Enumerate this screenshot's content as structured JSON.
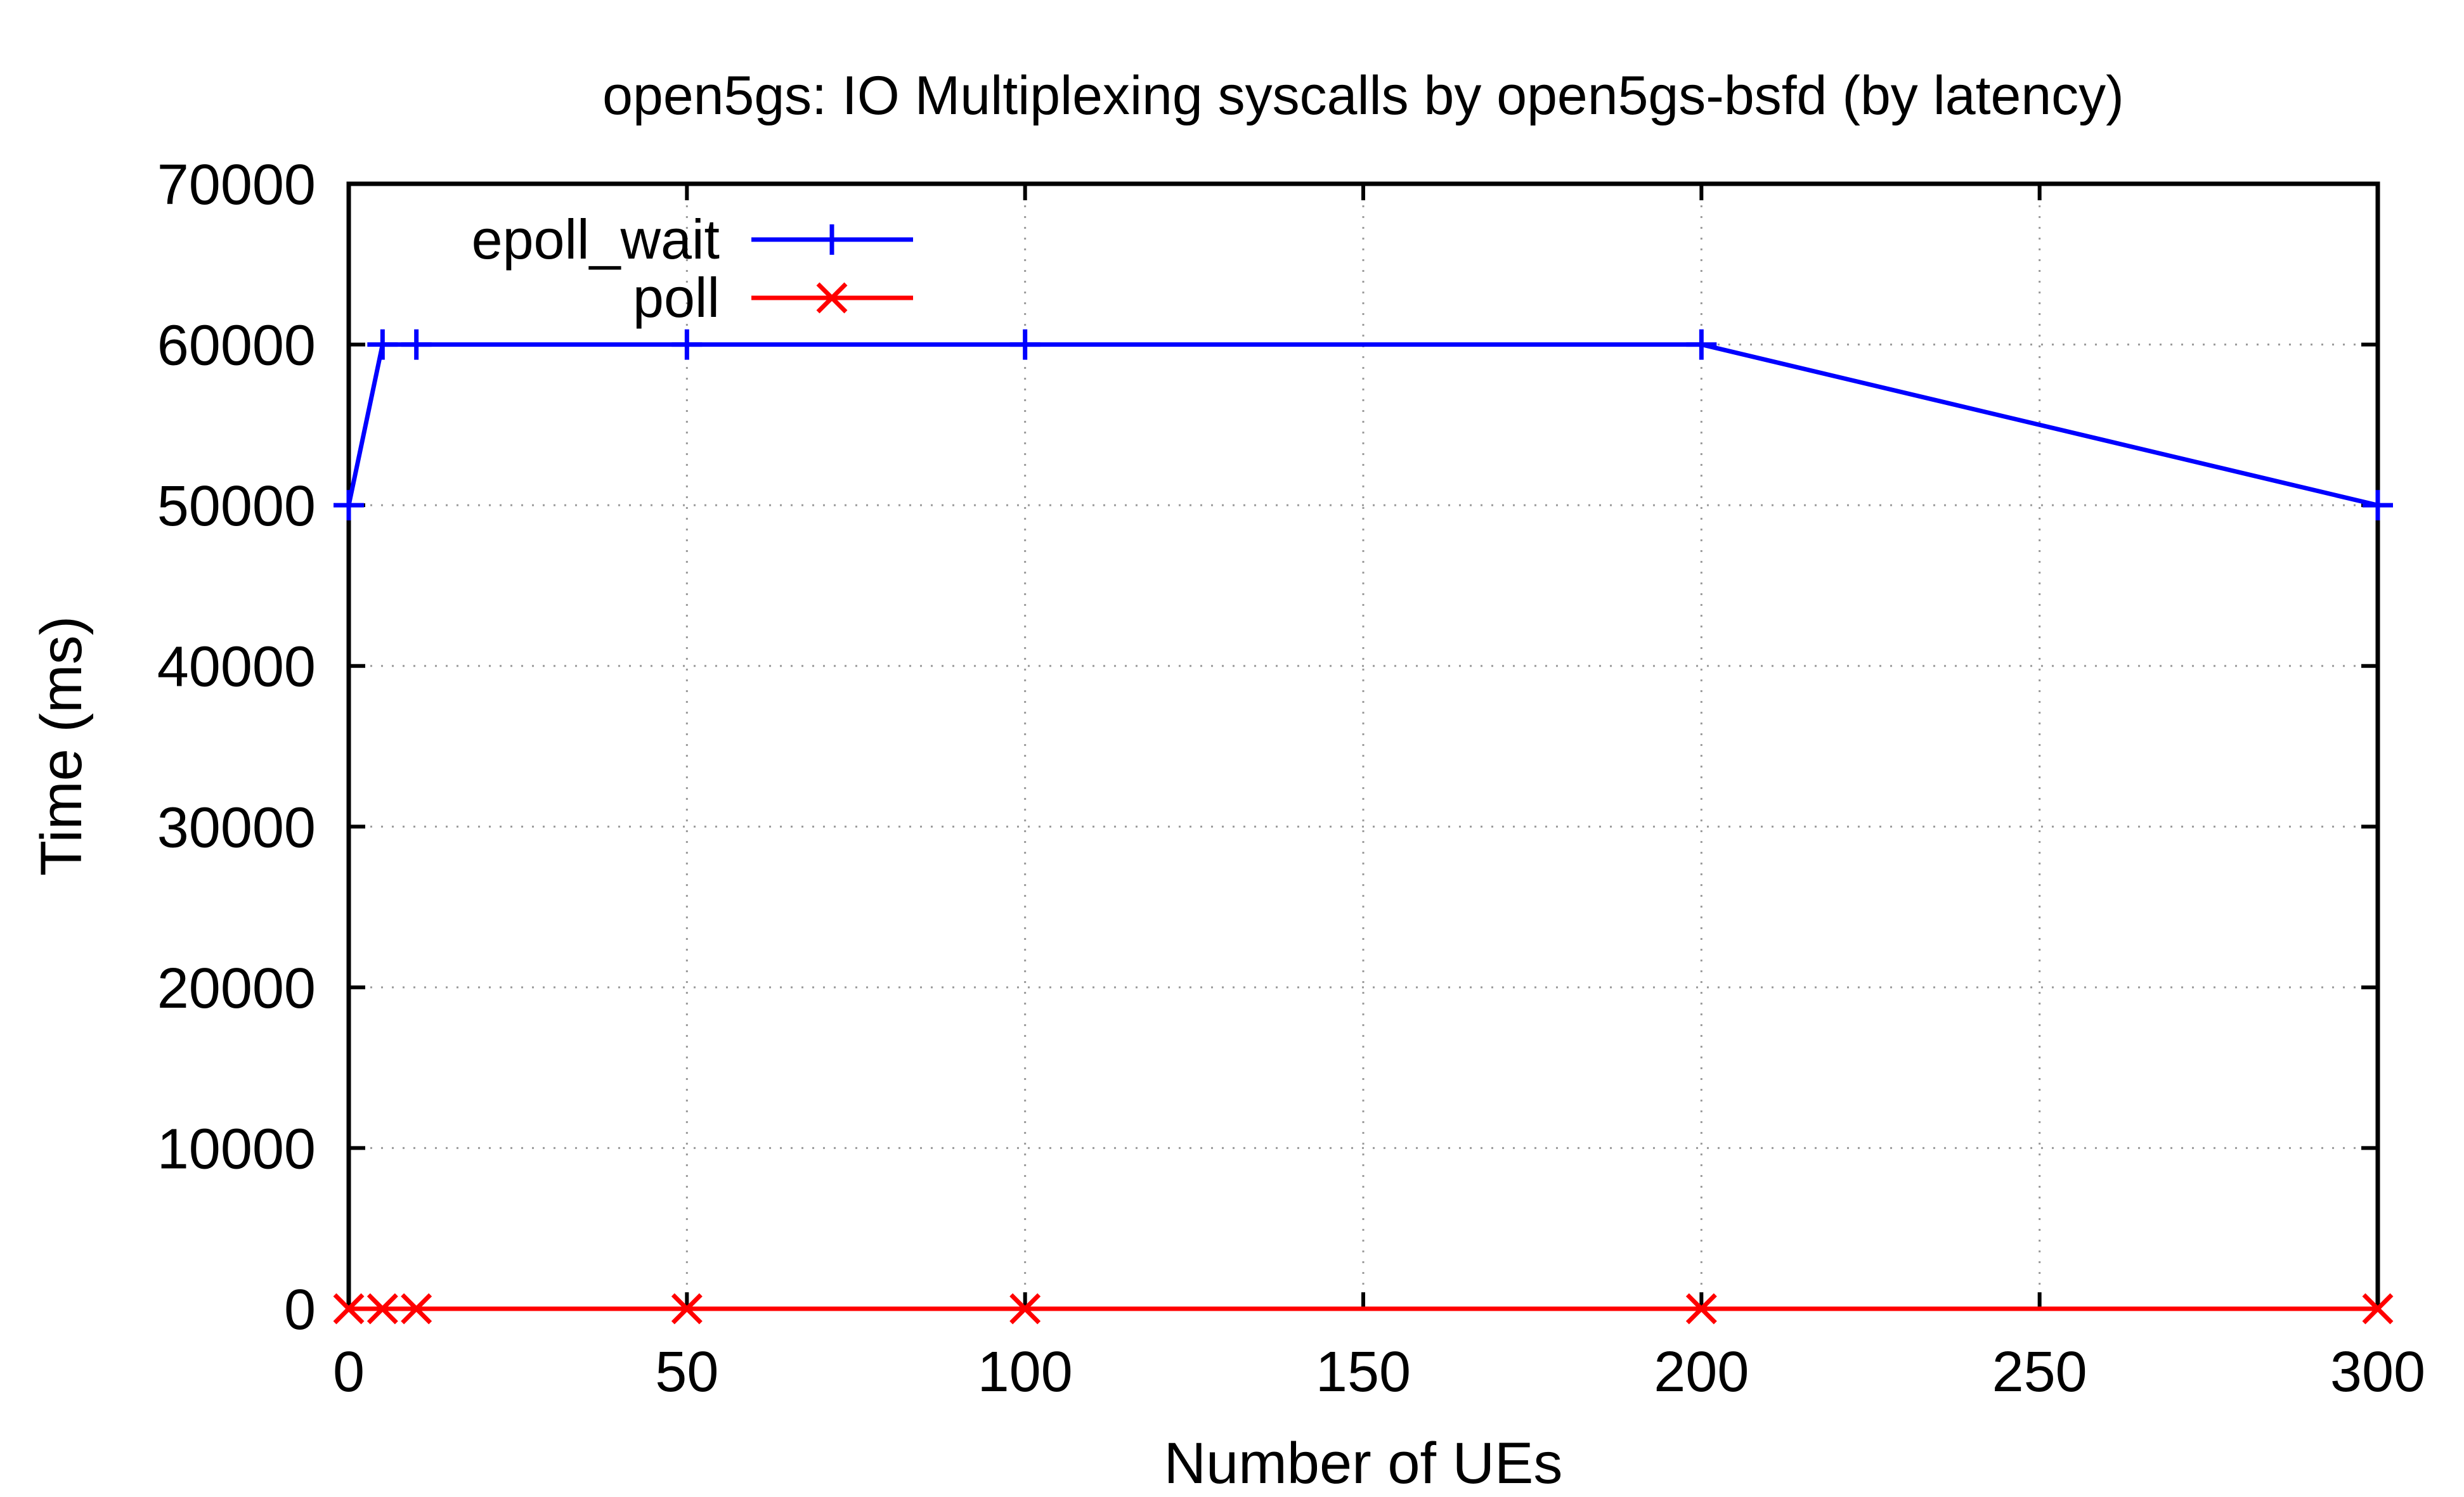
{
  "chart_data": {
    "type": "line",
    "title": "open5gs: IO Multiplexing syscalls by open5gs-bsfd (by latency)",
    "xlabel": "Number of UEs",
    "ylabel": "Time (ms)",
    "xlim": [
      0,
      300
    ],
    "ylim": [
      0,
      70000
    ],
    "xticks": [
      0,
      50,
      100,
      150,
      200,
      250,
      300
    ],
    "yticks": [
      0,
      10000,
      20000,
      30000,
      40000,
      50000,
      60000,
      70000
    ],
    "grid": true,
    "legend_position": "top-left",
    "series": [
      {
        "name": "epoll_wait",
        "color": "#0000ff",
        "marker": "plus",
        "x": [
          0,
          5,
          10,
          50,
          100,
          200,
          300
        ],
        "y": [
          50000,
          60000,
          60000,
          60000,
          60000,
          60000,
          50000
        ]
      },
      {
        "name": "poll",
        "color": "#ff0000",
        "marker": "cross",
        "x": [
          0,
          5,
          10,
          50,
          100,
          200,
          300
        ],
        "y": [
          0,
          0,
          0,
          0,
          0,
          0,
          0
        ]
      }
    ]
  }
}
